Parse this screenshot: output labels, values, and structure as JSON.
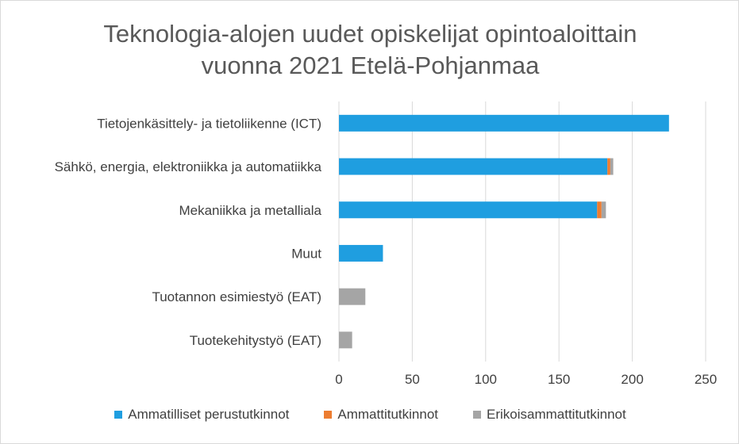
{
  "chart_data": {
    "type": "bar",
    "orientation": "horizontal",
    "stacked": true,
    "title": "Teknologia-alojen uudet opiskelijat opintoaloittain vuonna 2021 Etelä-Pohjanmaa",
    "title_lines": [
      "Teknologia-alojen uudet opiskelijat opintoaloittain",
      "vuonna 2021 Etelä-Pohjanmaa"
    ],
    "categories": [
      "Tietojenkäsittely- ja tietoliikenne (ICT)",
      "Sähkö, energia, elektroniikka ja automatiikka",
      "Mekaniikka ja metalliala",
      "Muut",
      "Tuotannon esimiestyö (EAT)",
      "Tuotekehitystyö (EAT)"
    ],
    "series": [
      {
        "name": "Ammatilliset perustutkinnot",
        "color": "#1f9ee0",
        "values": [
          225,
          183,
          176,
          30,
          0,
          0
        ]
      },
      {
        "name": "Ammattitutkinnot",
        "color": "#ed7d31",
        "values": [
          0,
          2,
          3,
          0,
          0,
          0
        ]
      },
      {
        "name": "Erikoisammattitutkinnot",
        "color": "#a5a5a5",
        "values": [
          0,
          2,
          3,
          0,
          18,
          9
        ]
      }
    ],
    "xlim": [
      0,
      250
    ],
    "xticks": [
      0,
      50,
      100,
      150,
      200,
      250
    ],
    "xlabel": "",
    "ylabel": "",
    "grid": true,
    "legend_position": "bottom"
  }
}
